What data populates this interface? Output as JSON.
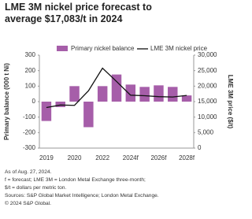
{
  "chart_data": {
    "type": "bar-line",
    "title": "LME 3M nickel price forecast to average $17,083/t in 2024",
    "categories": [
      "2019",
      null,
      "2020",
      null,
      "2022",
      null,
      "2024f",
      null,
      "2026f",
      null,
      "2028f"
    ],
    "series": [
      {
        "name": "Primary nickel balance",
        "type": "bar",
        "color": "#a65ea9",
        "values": [
          -125,
          -35,
          100,
          -165,
          100,
          175,
          110,
          95,
          105,
          95,
          40
        ]
      },
      {
        "name": "LME 3M nickel price",
        "type": "line",
        "axis": "y2",
        "color": "#111111",
        "values": [
          13100,
          13900,
          13800,
          18500,
          25800,
          21500,
          17083,
          16900,
          16600,
          16500,
          17000
        ]
      }
    ],
    "ylabel": "Primary balance (000 t Ni)",
    "y2label": "LME 3M price ($/t)",
    "ylim": [
      -300,
      300
    ],
    "yticks": [
      -300,
      -200,
      -100,
      0,
      100,
      200,
      300
    ],
    "y2lim": [
      0,
      30000
    ],
    "y2ticks": [
      0,
      {
        "value": 5000,
        "label": "5,000"
      },
      {
        "value": 10000,
        "label": "10,000"
      },
      {
        "value": 15000,
        "label": "15,000"
      },
      {
        "value": 20000,
        "label": "20,000"
      },
      {
        "value": 25000,
        "label": "25,000"
      },
      {
        "value": 30000,
        "label": "30,000"
      }
    ],
    "notes": [
      "As of Aug. 27, 2024.",
      "f = forecast; LME 3M = London Metal Exchange three-month;",
      "$/t = dollars per metric ton.",
      "Sources: S&P Global Market Intelligence; London Metal Exchange.",
      "© 2024 S&P Global."
    ]
  }
}
